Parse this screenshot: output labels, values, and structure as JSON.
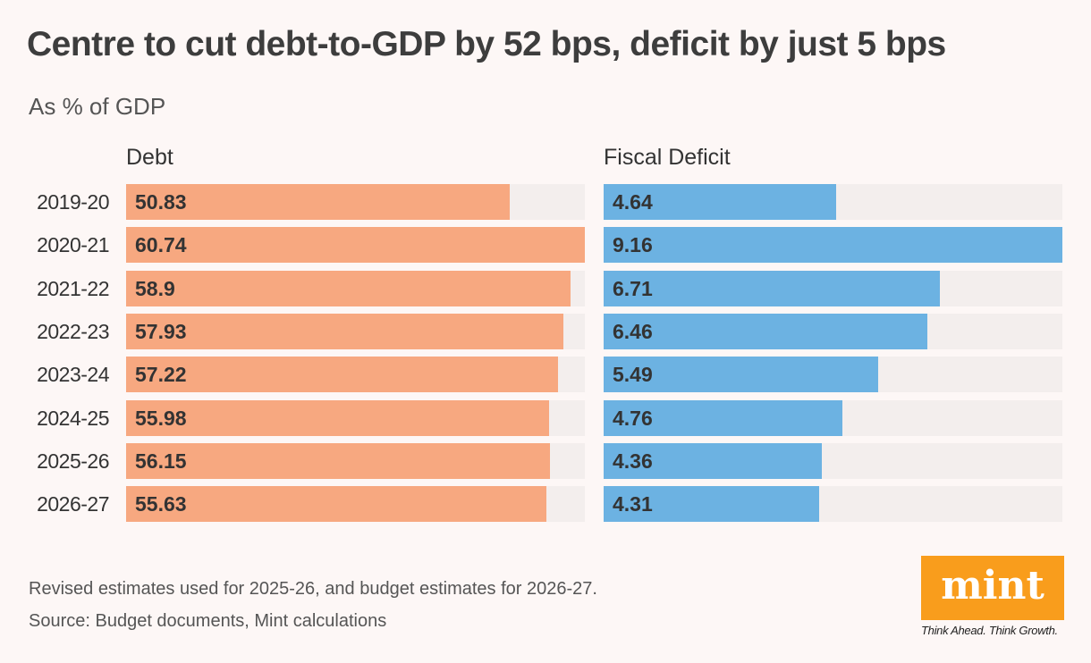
{
  "chart_data": {
    "type": "bar",
    "orientation": "horizontal",
    "title": "Centre to cut debt-to-GDP by 52 bps, deficit by just 5 bps",
    "subtitle": "As % of GDP",
    "categories": [
      "2019-20",
      "2020-21",
      "2021-22",
      "2022-23",
      "2023-24",
      "2024-25",
      "2025-26",
      "2026-27"
    ],
    "series": [
      {
        "name": "Debt",
        "values": [
          50.83,
          60.74,
          58.9,
          57.93,
          57.22,
          55.98,
          56.15,
          55.63
        ],
        "color": "#f7a880"
      },
      {
        "name": "Fiscal Deficit",
        "values": [
          4.64,
          9.16,
          6.71,
          6.46,
          5.49,
          4.76,
          4.36,
          4.31
        ],
        "color": "#6cb2e2"
      }
    ],
    "grid": false,
    "data_labels": true,
    "track_color": "#f3eeed"
  },
  "footer": {
    "note": "Revised estimates used for 2025-26, and budget estimates for 2026-27.",
    "source": "Source: Budget documents, Mint calculations"
  },
  "logo": {
    "text": "mint",
    "tagline": "Think Ahead. Think Growth.",
    "color": "#f99d1c"
  }
}
